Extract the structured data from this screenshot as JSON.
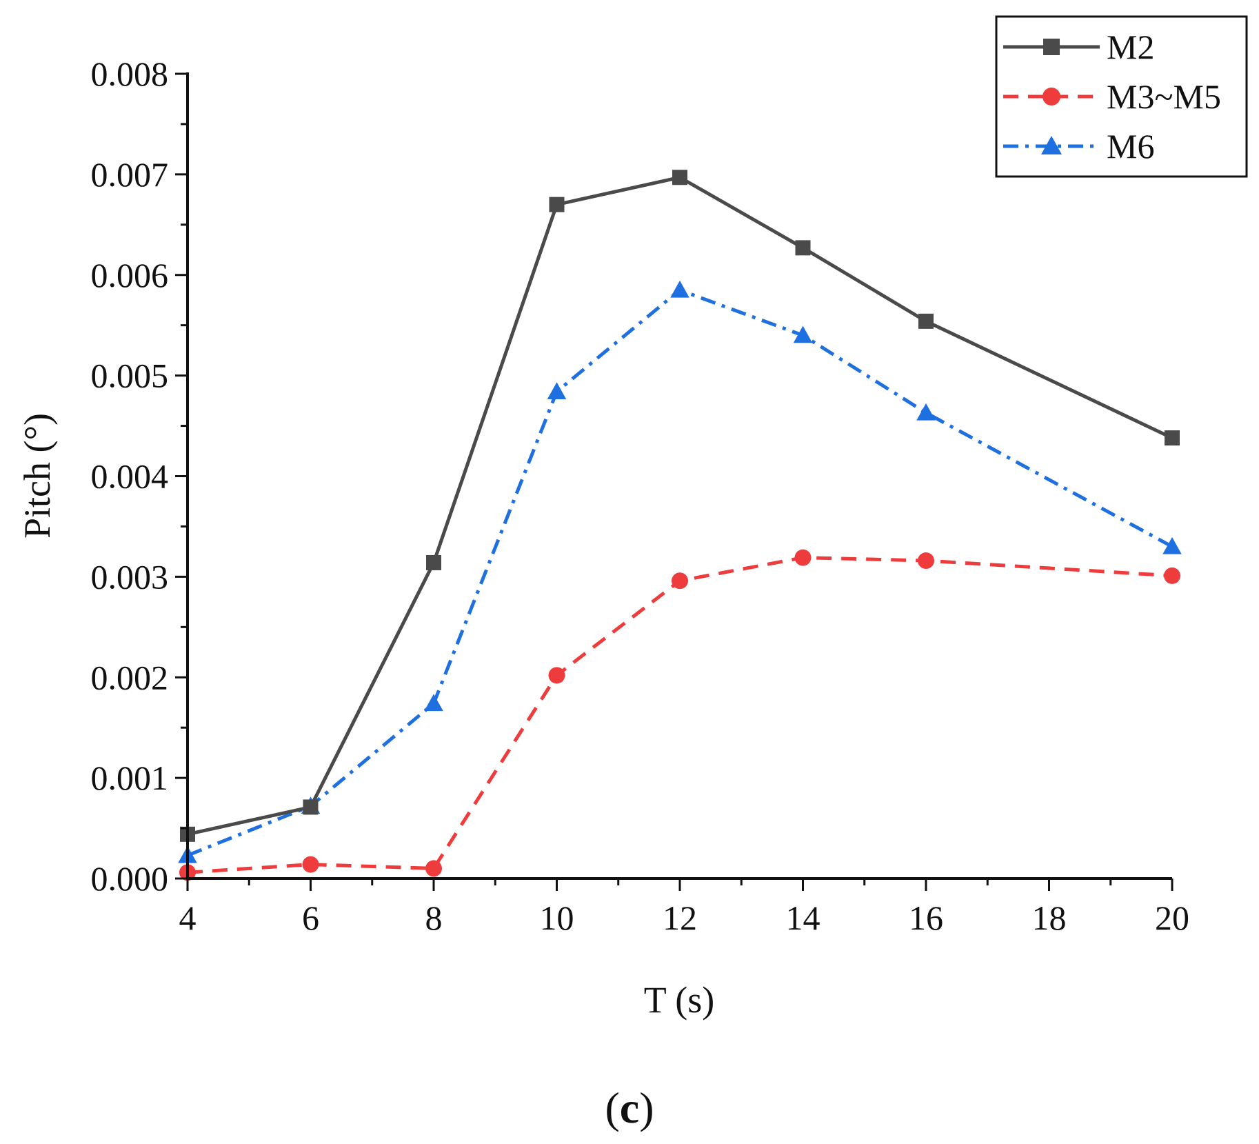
{
  "chart_data": {
    "type": "line",
    "title": "",
    "panel_label_open": "(",
    "panel_label_letter": "c",
    "panel_label_close": ")",
    "xlabel": "T (s)",
    "ylabel": "Pitch (°)",
    "xlim": [
      4,
      20
    ],
    "ylim": [
      0,
      0.008
    ],
    "xticks": [
      4,
      6,
      8,
      10,
      12,
      14,
      16,
      18,
      20
    ],
    "xtick_labels": [
      "4",
      "6",
      "8",
      "10",
      "12",
      "14",
      "16",
      "18",
      "20"
    ],
    "yticks": [
      0,
      0.001,
      0.002,
      0.003,
      0.004,
      0.005,
      0.006,
      0.007,
      0.008
    ],
    "ytick_labels": [
      "0.000",
      "0.001",
      "0.002",
      "0.003",
      "0.004",
      "0.005",
      "0.006",
      "0.007",
      "0.008"
    ],
    "grid": false,
    "legend_position": "top-right",
    "x": [
      4,
      6,
      8,
      10,
      12,
      14,
      16,
      20
    ],
    "series": [
      {
        "name": "M2",
        "color": "#4a4a4a",
        "marker": "square",
        "dash": "solid",
        "values": [
          0.00044,
          0.00071,
          0.00314,
          0.0067,
          0.00697,
          0.00627,
          0.00554,
          0.00438
        ]
      },
      {
        "name": "M3~M5",
        "color": "#ee3b3b",
        "marker": "circle",
        "dash": "dashed",
        "values": [
          6e-05,
          0.00014,
          0.0001,
          0.00202,
          0.00296,
          0.00319,
          0.00316,
          0.00301
        ]
      },
      {
        "name": "M6",
        "color": "#1e6fe0",
        "marker": "triangle",
        "dash": "dashdot",
        "values": [
          0.00023,
          0.00072,
          0.00174,
          0.00484,
          0.00585,
          0.0054,
          0.00463,
          0.0033
        ]
      }
    ]
  }
}
